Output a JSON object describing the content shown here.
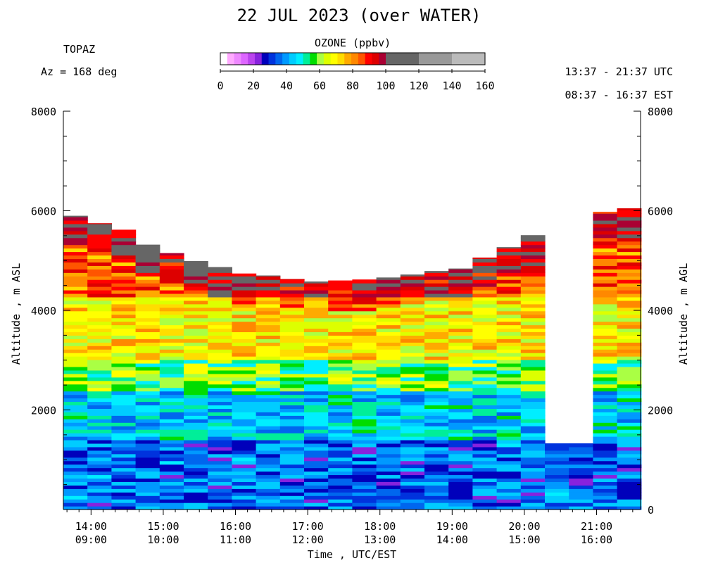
{
  "title": "22 JUL 2023 (over WATER)",
  "site": "TOPAZ",
  "azimuth_text": "Az = 168 deg",
  "time_range_utc": "13:37 - 21:37 UTC",
  "time_range_est": "08:37 - 16:37 EST",
  "colorbar": {
    "title": "OZONE (ppbv)",
    "tick_labels": [
      "0",
      "20",
      "40",
      "60",
      "80",
      "100",
      "120",
      "140",
      "160"
    ],
    "colors": [
      "#ffffff",
      "#ffaaff",
      "#ee88ff",
      "#dd66ff",
      "#bb44ee",
      "#8822dd",
      "#0000bb",
      "#0033dd",
      "#0066ee",
      "#0099ff",
      "#00ccff",
      "#00eeff",
      "#00ee99",
      "#00dd00",
      "#aaff44",
      "#ddff00",
      "#ffff00",
      "#ffdd00",
      "#ffaa00",
      "#ff8800",
      "#ff5500",
      "#ff0000",
      "#dd0000",
      "#aa0033",
      "#666666",
      "#999999",
      "#bbbbbb"
    ]
  },
  "chart_data": {
    "type": "heatmap",
    "title": "22 JUL 2023 (over WATER)",
    "xlabel": "Time , UTC/EST",
    "ylabel_left": "Altitude , m ASL",
    "ylabel_right": "Altitude , m AGL",
    "ylim": [
      0,
      8000
    ],
    "y_ticks": [
      "8000",
      "6000",
      "4000",
      "2000"
    ],
    "y_ticks_right": [
      "8000",
      "6000",
      "4000",
      "2000",
      "0"
    ],
    "x_ticks_utc": [
      "14:00",
      "15:00",
      "16:00",
      "17:00",
      "18:00",
      "19:00",
      "20:00",
      "21:00"
    ],
    "x_ticks_est": [
      "09:00",
      "10:00",
      "11:00",
      "12:00",
      "13:00",
      "14:00",
      "15:00",
      "16:00"
    ],
    "column_start_utc": [
      "13:37",
      "13:57",
      "14:17",
      "14:37",
      "14:57",
      "15:17",
      "15:37",
      "15:57",
      "16:17",
      "16:37",
      "16:57",
      "17:17",
      "17:37",
      "17:57",
      "18:17",
      "18:37",
      "18:57",
      "19:17",
      "19:37",
      "19:57",
      "20:17",
      "20:37",
      "20:57",
      "21:17"
    ],
    "column_top_altitude_m": [
      5900,
      5750,
      5620,
      5320,
      5150,
      4990,
      4870,
      4740,
      4700,
      4630,
      4580,
      4600,
      4620,
      4660,
      4720,
      4790,
      4840,
      5060,
      5270,
      5510,
      1330,
      1330,
      5980,
      6050
    ],
    "layers": [
      {
        "altitude_m": [
          0,
          1400
        ],
        "ozone_ppbv": 35
      },
      {
        "altitude_m": [
          1400,
          2400
        ],
        "ozone_ppbv": 45
      },
      {
        "altitude_m": [
          2400,
          3000
        ],
        "ozone_ppbv": 58
      },
      {
        "altitude_m": [
          3000,
          4300
        ],
        "ozone_ppbv": 70
      },
      {
        "altitude_m": [
          4300,
          6100
        ],
        "ozone_ppbv": 85
      }
    ]
  }
}
